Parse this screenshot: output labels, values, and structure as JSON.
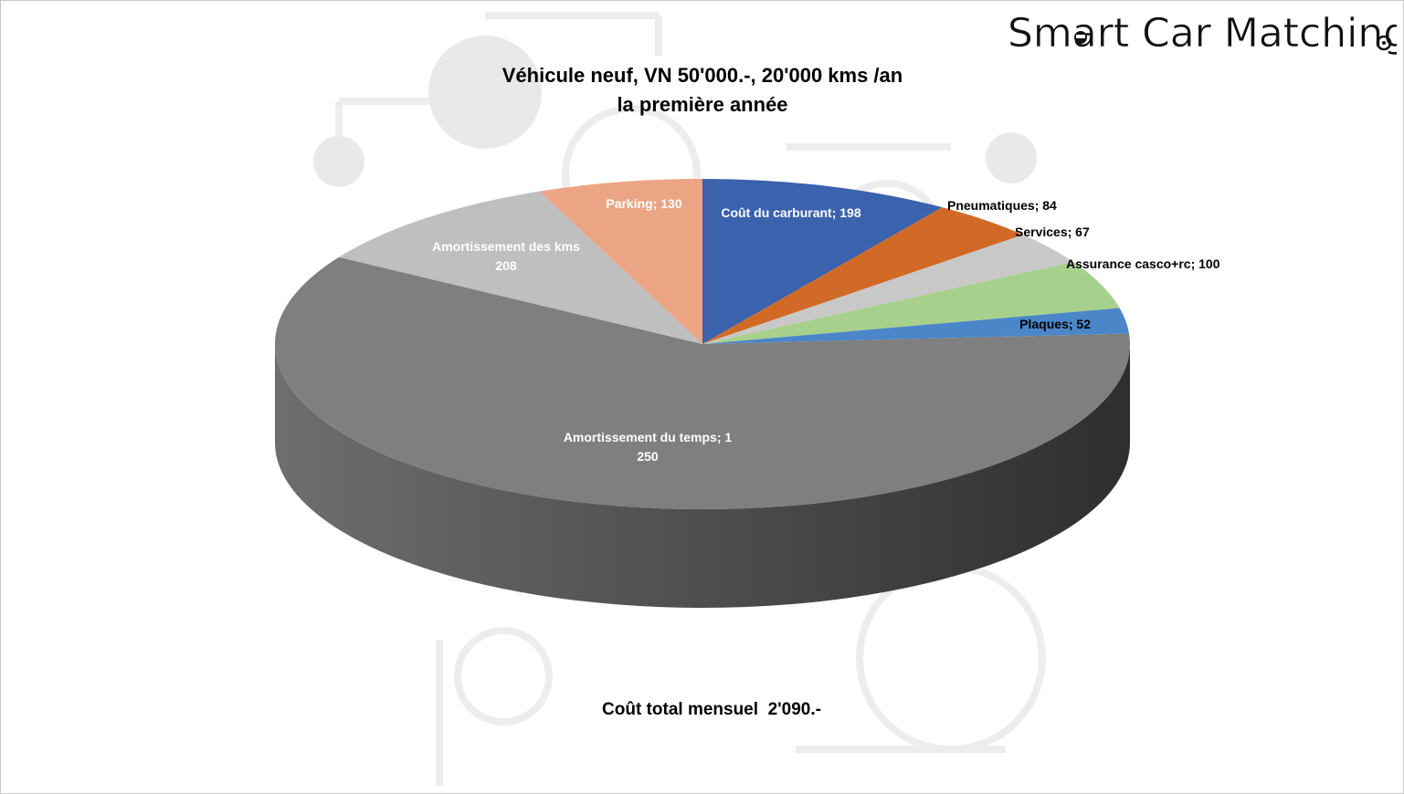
{
  "brand": {
    "logo_text": "Smart Car Matching"
  },
  "chart_data": {
    "type": "pie",
    "style": "3d-tilted",
    "title_line1": "Véhicule neuf, VN 50'000.-, 20'000 kms /an",
    "title_line2": "la première année",
    "total_label": "Coût total mensuel  2'090.-",
    "slices": [
      {
        "name": "Coût du carburant",
        "value": 198,
        "color": "#3a62ad",
        "label": "Coût du carburant; 198"
      },
      {
        "name": "Pneumatiques",
        "value": 84,
        "color": "#d16a27",
        "label": "Pneumatiques; 84"
      },
      {
        "name": "Services",
        "value": 67,
        "color": "#c8c8c8",
        "label": "Services; 67"
      },
      {
        "name": "Assurance casco+rc",
        "value": 100,
        "color": "#a8d08d",
        "label": "Assurance casco+rc; 100"
      },
      {
        "name": "Plaques",
        "value": 52,
        "color": "#4a86c8",
        "label": "Plaques; 52"
      },
      {
        "name": "Amortissement du temps",
        "value": 1250,
        "color": "#7f7f7f",
        "label_lines": [
          "Amortissement du temps; 1",
          "250"
        ]
      },
      {
        "name": "Amortissement des kms",
        "value": 208,
        "color": "#bfbfbf",
        "label_lines": [
          "Amortissement des kms",
          "208"
        ]
      },
      {
        "name": "Parking",
        "value": 130,
        "color": "#eba584",
        "label": "Parking; 130"
      }
    ]
  }
}
